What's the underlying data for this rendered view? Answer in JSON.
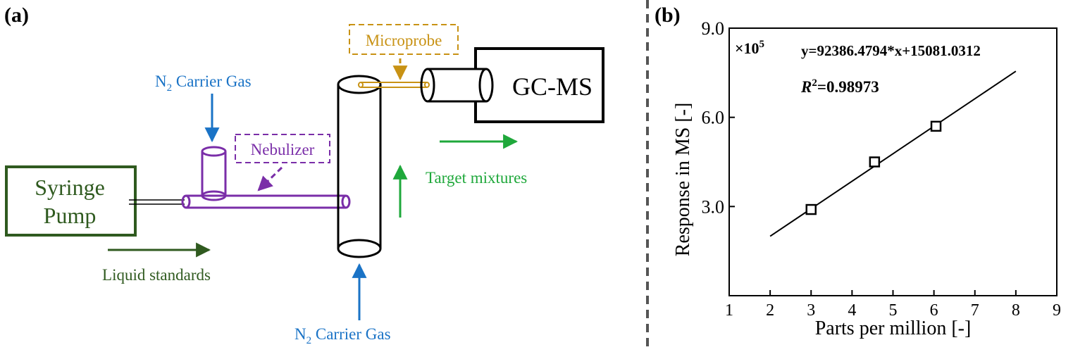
{
  "colors": {
    "dark_green": "#2f5a1f",
    "blue": "#1a73c6",
    "purple": "#7a2ea8",
    "gold": "#c89214",
    "green": "#1fa83b",
    "black": "#000000",
    "divider": "#555555"
  },
  "panel_a": {
    "label": "(a)",
    "syringe_pump": {
      "line1": "Syringe",
      "line2": "Pump"
    },
    "liquid_standards": "Liquid standards",
    "nebulizer": "Nebulizer",
    "carrier_gas_top": {
      "prefix": "N",
      "sub": "2",
      "suffix": " Carrier Gas"
    },
    "carrier_gas_bottom": {
      "prefix": "N",
      "sub": "2",
      "suffix": " Carrier Gas"
    },
    "microprobe": "Microprobe",
    "gcms": "GC-MS",
    "target_mixtures": "Target mixtures"
  },
  "panel_b": {
    "label": "(b)",
    "multiplier": {
      "base": "×10",
      "exp": "5"
    },
    "equation": "y=92386.4794*x+15081.0312",
    "r2": {
      "r": "R",
      "exp": "2",
      "value": "=0.98973"
    }
  },
  "chart_data": {
    "type": "scatter",
    "xlabel": "Parts per million [-]",
    "ylabel": "Response in MS [-]",
    "xlim": [
      1,
      9
    ],
    "ylim": [
      0.0,
      9.0
    ],
    "xticks": [
      1,
      2,
      3,
      4,
      5,
      6,
      7,
      8,
      9
    ],
    "yticks": [
      3.0,
      6.0,
      9.0
    ],
    "ytick_labels": [
      "3.0",
      "6.0",
      "9.0"
    ],
    "y_unit_multiplier": "×10^5",
    "series": [
      {
        "marker": "open-square",
        "x": [
          3.0,
          4.55,
          6.05
        ],
        "y": [
          2.9,
          4.5,
          5.7
        ]
      }
    ],
    "fit_line": {
      "x": [
        2,
        8
      ],
      "y": [
        2.0,
        7.55
      ]
    },
    "grid": false
  }
}
